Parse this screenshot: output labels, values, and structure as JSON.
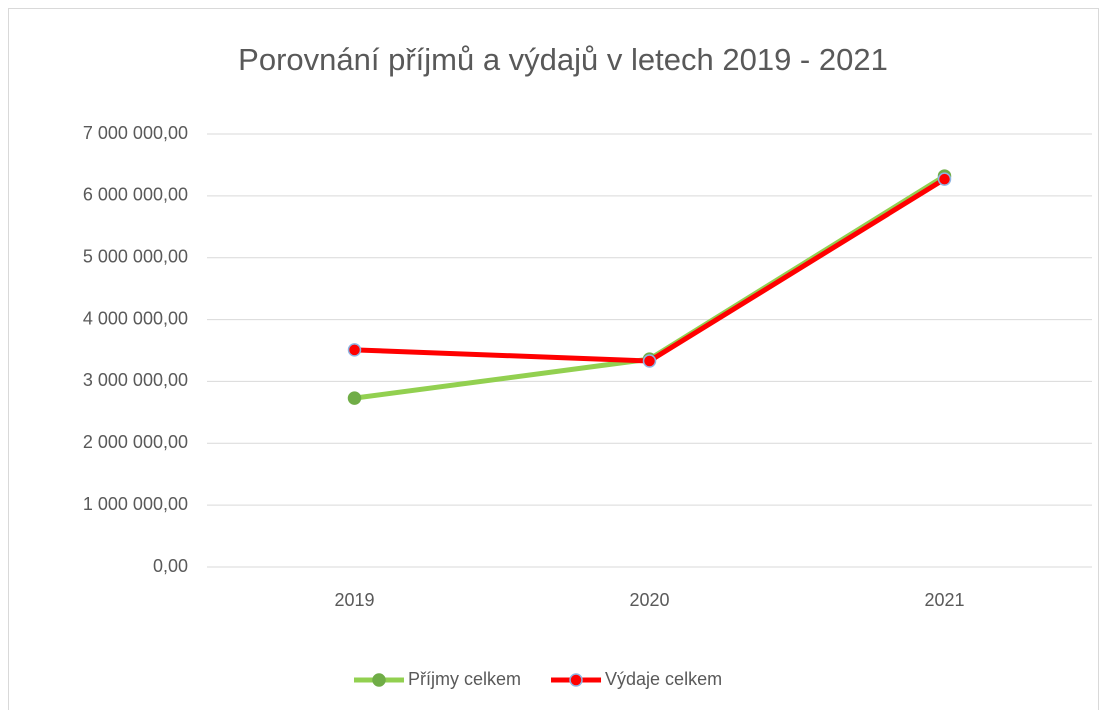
{
  "chart_data": {
    "type": "line",
    "title": "Porovnání příjmů a výdajů v letech 2019 - 2021",
    "categories": [
      "2019",
      "2020",
      "2021"
    ],
    "series": [
      {
        "name": "Příjmy celkem",
        "color": "#92d050",
        "marker_color": "#70ad47",
        "values": [
          2730000,
          3360000,
          6320000
        ]
      },
      {
        "name": "Výdaje celkem",
        "color": "#ff0000",
        "marker_color": "#ff0000",
        "values": [
          3510000,
          3330000,
          6270000
        ]
      }
    ],
    "ylim": [
      0,
      7000000
    ],
    "yticks": [
      {
        "value": 0,
        "label": "0,00"
      },
      {
        "value": 1000000,
        "label": "1 000 000,00"
      },
      {
        "value": 2000000,
        "label": "2 000 000,00"
      },
      {
        "value": 3000000,
        "label": "3 000 000,00"
      },
      {
        "value": 4000000,
        "label": "4 000 000,00"
      },
      {
        "value": 5000000,
        "label": "5 000 000,00"
      },
      {
        "value": 6000000,
        "label": "6 000 000,00"
      },
      {
        "value": 7000000,
        "label": "7 000 000,00"
      }
    ],
    "grid": true,
    "legend": "bottom"
  }
}
